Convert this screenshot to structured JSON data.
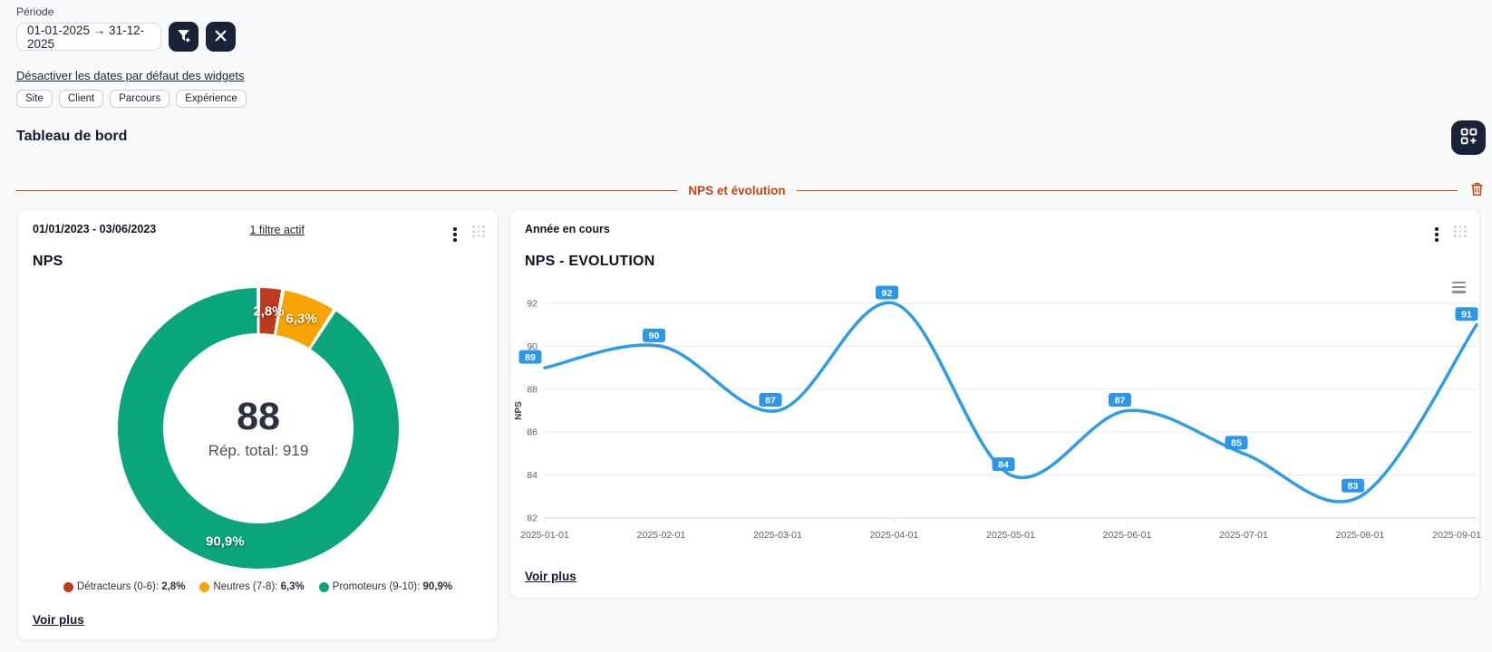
{
  "header": {
    "periode_label": "Période",
    "date_range": "01-01-2025 → 31-12-2025",
    "disable_dates_link": "Désactiver les dates par défaut des widgets",
    "chips": [
      "Site",
      "Client",
      "Parcours",
      "Expérience"
    ],
    "board_title": "Tableau de bord"
  },
  "section": {
    "title": "NPS et évolution"
  },
  "icons": {
    "filter_add": "funnel-plus-icon",
    "clear_filter": "x-icon",
    "add_widget": "widget-grid-plus-icon",
    "delete_section": "trash-icon",
    "card_menu": "kebab-icon",
    "card_drag": "drag-dots-icon",
    "chart_context_menu": "hamburger-icon"
  },
  "colors": {
    "accent_orange": "#c8440f",
    "dark_navy": "#192236",
    "line_blue": "#2f9de6"
  },
  "nps_card": {
    "period": "01/01/2023 - 03/06/2023",
    "filter_link": "1 filtre actif",
    "title": "NPS",
    "voir_plus": "Voir plus"
  },
  "evolution_card": {
    "period": "Année en cours",
    "title": "NPS - EVOLUTION",
    "voir_plus": "Voir plus"
  },
  "chart_data": [
    {
      "type": "pie",
      "donut": true,
      "title": "NPS",
      "labels": [
        "Détracteurs (0-6)",
        "Neutres (7-8)",
        "Promoteurs (9-10)"
      ],
      "values": [
        2.8,
        6.3,
        90.9
      ],
      "value_labels": [
        "2,8%",
        "6,3%",
        "90,9%"
      ],
      "colors": [
        "#bd3a1e",
        "#f7a400",
        "#0ba57d"
      ],
      "center_value": "88",
      "center_subtitle": "Rép. total: 919",
      "legend_position": "bottom"
    },
    {
      "type": "line",
      "title": "NPS - EVOLUTION",
      "x": [
        "2025-01-01",
        "2025-02-01",
        "2025-03-01",
        "2025-04-01",
        "2025-05-01",
        "2025-06-01",
        "2025-07-01",
        "2025-08-01",
        "2025-09-01"
      ],
      "values": [
        89,
        90,
        87,
        92,
        84,
        87,
        85,
        83,
        91
      ],
      "ylabel": "NPS",
      "ylim": [
        82,
        92
      ],
      "yticks": [
        82,
        84,
        86,
        88,
        90,
        92
      ],
      "grid": true,
      "smooth": true,
      "legend": "none",
      "line_color": "#2f9de6",
      "label_bg": "#2b96ea"
    }
  ]
}
